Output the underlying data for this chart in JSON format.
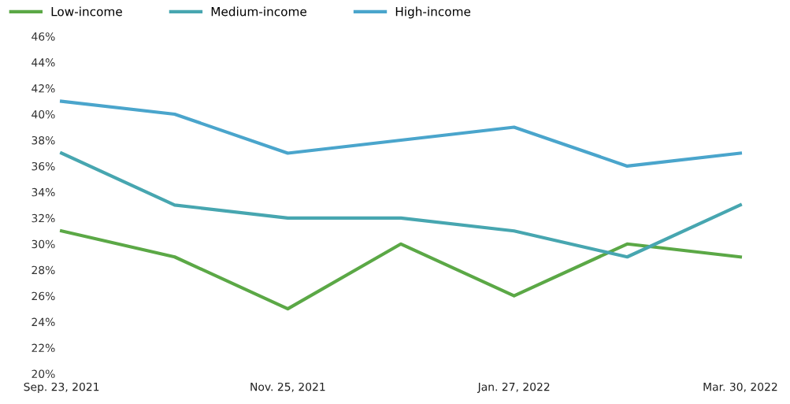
{
  "chart_data": {
    "type": "line",
    "categories": [
      "Sep. 23, 2021",
      null,
      "Nov. 25, 2021",
      null,
      "Jan. 27, 2022",
      null,
      "Mar. 30, 2022"
    ],
    "series": [
      {
        "name": "Low-income",
        "color": "#5ba846",
        "values": [
          31,
          29,
          25,
          30,
          26,
          30,
          29
        ]
      },
      {
        "name": "Medium-income",
        "color": "#47a6b0",
        "values": [
          37,
          33,
          32,
          32,
          31,
          29,
          33
        ]
      },
      {
        "name": "High-income",
        "color": "#4aa5cc",
        "values": [
          41,
          40,
          37,
          38,
          39,
          36,
          37
        ]
      }
    ],
    "ylim": [
      20,
      46
    ],
    "yticks": [
      {
        "value": 20,
        "label": "20%"
      },
      {
        "value": 22,
        "label": "22%"
      },
      {
        "value": 24,
        "label": "24%"
      },
      {
        "value": 26,
        "label": "26%"
      },
      {
        "value": 28,
        "label": "28%"
      },
      {
        "value": 30,
        "label": "30%"
      },
      {
        "value": 32,
        "label": "32%"
      },
      {
        "value": 34,
        "label": "34%"
      },
      {
        "value": 36,
        "label": "36%"
      },
      {
        "value": 38,
        "label": "38%"
      },
      {
        "value": 40,
        "label": "40%"
      },
      {
        "value": 42,
        "label": "42%"
      },
      {
        "value": 44,
        "label": "44%"
      },
      {
        "value": 46,
        "label": "46%"
      }
    ],
    "grid": false,
    "legend": "top left",
    "marker": "none",
    "line_style": "solid"
  }
}
